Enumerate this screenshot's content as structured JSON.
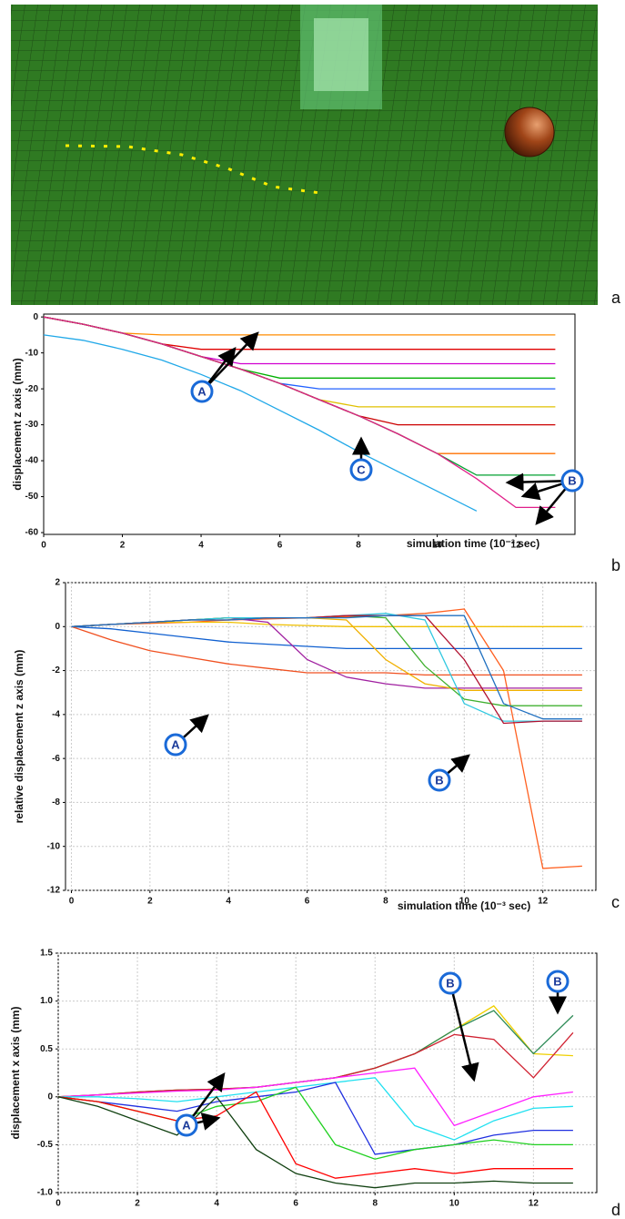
{
  "figure_labels": [
    "a",
    "b",
    "c",
    "d"
  ],
  "chart_data": [
    {
      "type": "line",
      "xlabel": "simulation time (10⁻³ sec)",
      "ylabel": "displacement z axis (mm)",
      "x": [
        0,
        1,
        2,
        3,
        4,
        5,
        6,
        7,
        8,
        9,
        10,
        11,
        12,
        13
      ],
      "xlim": [
        0,
        13.5
      ],
      "xticks": [
        0,
        2,
        4,
        6,
        8,
        10,
        12
      ],
      "ylim": [
        -60.5,
        0.8
      ],
      "yticks": [
        0,
        -10,
        -20,
        -30,
        -40,
        -50,
        -60
      ],
      "grid": false,
      "annotations": [
        "A",
        "B",
        "C"
      ],
      "series": [
        {
          "color": "#ff8c00",
          "values": [
            0,
            -2,
            -4.5,
            -5,
            -5,
            -5,
            -5,
            -5,
            -5,
            -5,
            -5,
            -5,
            -5,
            -5
          ]
        },
        {
          "color": "#e00000",
          "values": [
            0,
            -2,
            -4.5,
            -7.5,
            -9,
            -9,
            -9,
            -9,
            -9,
            -9,
            -9,
            -9,
            -9,
            -9
          ]
        },
        {
          "color": "#d000d0",
          "values": [
            0,
            -2,
            -4.5,
            -7.5,
            -11,
            -13,
            -13,
            -13,
            -13,
            -13,
            -13,
            -13,
            -13,
            -13
          ]
        },
        {
          "color": "#00b000",
          "values": [
            0,
            -2,
            -4.5,
            -7.5,
            -11,
            -14.5,
            -17,
            -17,
            -17,
            -17,
            -17,
            -17,
            -17,
            -17
          ]
        },
        {
          "color": "#2060ff",
          "values": [
            0,
            -2,
            -4.5,
            -7.5,
            -11,
            -14.5,
            -18.5,
            -20,
            -20,
            -20,
            -20,
            -20,
            -20,
            -20
          ]
        },
        {
          "color": "#e0c000",
          "values": [
            0,
            -2,
            -4.5,
            -7.5,
            -11,
            -14.5,
            -18.5,
            -23,
            -25,
            -25,
            -25,
            -25,
            -25,
            -25
          ]
        },
        {
          "color": "#cc0000",
          "values": [
            0,
            -2,
            -4.5,
            -7.5,
            -11,
            -14.5,
            -18.5,
            -23,
            -27.5,
            -30,
            -30,
            -30,
            -30,
            -30
          ]
        },
        {
          "color": "#ff7000",
          "values": [
            0,
            -2,
            -4.5,
            -7.5,
            -11,
            -14.5,
            -18.5,
            -23,
            -27.5,
            -32.5,
            -38,
            -38,
            -38,
            -38
          ]
        },
        {
          "color": "#00a030",
          "values": [
            0,
            -2,
            -4.5,
            -7.5,
            -11,
            -14.5,
            -18.5,
            -23,
            -27.5,
            -32.5,
            -38,
            -44,
            -44,
            -44
          ]
        },
        {
          "color": "#e0208a",
          "values": [
            0,
            -2,
            -4.5,
            -7.5,
            -11,
            -14.5,
            -18.5,
            -23,
            -27.5,
            -32.5,
            -38,
            -45,
            -53,
            -53
          ]
        },
        {
          "color": "#20a8e8",
          "values": [
            -5,
            -6.5,
            -9,
            -12,
            -16,
            -20.5,
            -26,
            -31.5,
            -37.5,
            -43,
            -48.5,
            -54,
            null,
            null
          ]
        }
      ]
    },
    {
      "type": "line",
      "xlabel": "simulation time (10⁻³ sec)",
      "ylabel": "relative displacement z axis (mm)",
      "x": [
        0,
        1,
        2,
        3,
        4,
        5,
        6,
        7,
        8,
        9,
        10,
        11,
        12,
        13
      ],
      "xlim": [
        -0.15,
        13.35
      ],
      "xticks": [
        0,
        2,
        4,
        6,
        8,
        10,
        12
      ],
      "ylim": [
        -12,
        2
      ],
      "yticks": [
        2,
        0,
        -2,
        -4,
        -6,
        -8,
        -10,
        -12
      ],
      "grid": true,
      "annotations": [
        "A",
        "B"
      ],
      "series": [
        {
          "color": "#ff6020",
          "values": [
            0,
            0.1,
            0.15,
            0.2,
            0.3,
            0.35,
            0.4,
            0.45,
            0.5,
            0.6,
            0.8,
            -2,
            -11,
            -10.9
          ]
        },
        {
          "color": "#f0c000",
          "values": [
            0,
            0.1,
            0.2,
            0.2,
            0.2,
            0.1,
            0.05,
            0,
            0,
            0,
            0,
            0,
            0,
            0
          ]
        },
        {
          "color": "#1060d0",
          "values": [
            0,
            -0.1,
            -0.3,
            -0.5,
            -0.7,
            -0.8,
            -0.9,
            -1,
            -1,
            -1,
            -1,
            -1,
            -1,
            -1
          ]
        },
        {
          "color": "#f05020",
          "values": [
            0,
            -0.6,
            -1.1,
            -1.4,
            -1.7,
            -1.9,
            -2.1,
            -2.1,
            -2.1,
            -2.2,
            -2.2,
            -2.2,
            -2.2,
            -2.2
          ]
        },
        {
          "color": "#a020a0",
          "values": [
            0,
            0.1,
            0.2,
            0.3,
            0.4,
            0.2,
            -1.5,
            -2.3,
            -2.6,
            -2.8,
            -2.8,
            -2.8,
            -2.8,
            -2.8
          ]
        },
        {
          "color": "#f0b000",
          "values": [
            0,
            0.1,
            0.2,
            0.3,
            0.4,
            0.4,
            0.4,
            0.3,
            -1.5,
            -2.6,
            -2.9,
            -2.9,
            -2.9,
            -2.9
          ]
        },
        {
          "color": "#40b030",
          "values": [
            0,
            0.1,
            0.2,
            0.3,
            0.4,
            0.4,
            0.4,
            0.5,
            0.4,
            -1.8,
            -3.3,
            -3.6,
            -3.6,
            -3.6
          ]
        },
        {
          "color": "#30c8e0",
          "values": [
            0,
            0.1,
            0.2,
            0.3,
            0.4,
            0.4,
            0.4,
            0.5,
            0.6,
            0.3,
            -3.5,
            -4.3,
            -4.3,
            -4.3
          ]
        },
        {
          "color": "#b01030",
          "values": [
            0,
            0.1,
            0.2,
            0.3,
            0.3,
            0.4,
            0.4,
            0.5,
            0.5,
            0.5,
            -1.5,
            -4.4,
            -4.3,
            -4.3
          ]
        },
        {
          "color": "#2070c0",
          "values": [
            0,
            0.1,
            0.2,
            0.3,
            0.3,
            0.4,
            0.4,
            0.4,
            0.5,
            0.5,
            0.5,
            -3.5,
            -4.2,
            -4.2
          ]
        }
      ]
    },
    {
      "type": "line",
      "ylabel": "displacement x axis (mm)",
      "x": [
        0,
        1,
        2,
        3,
        4,
        5,
        6,
        7,
        8,
        9,
        10,
        11,
        12,
        13
      ],
      "xlim": [
        0,
        13.6
      ],
      "xticks": [
        0,
        2,
        4,
        6,
        8,
        10,
        12
      ],
      "ylim": [
        -1,
        1.5
      ],
      "yticks": [
        1.5,
        {
          "value": 1,
          "label": "1.0"
        },
        0.5,
        0,
        -0.5,
        {
          "value": -1,
          "label": "-1.0"
        }
      ],
      "grid": true,
      "annotations": [
        "B",
        "B",
        "A"
      ],
      "series": [
        {
          "color": "#f0d000",
          "values": [
            0,
            0.02,
            0.05,
            0.07,
            0.08,
            0.1,
            0.15,
            0.2,
            0.3,
            0.45,
            0.7,
            0.95,
            0.45,
            0.43
          ]
        },
        {
          "color": "#2e8b57",
          "values": [
            0,
            0.02,
            0.05,
            0.07,
            0.08,
            0.1,
            0.15,
            0.2,
            0.3,
            0.45,
            0.7,
            0.9,
            0.45,
            0.85
          ]
        },
        {
          "color": "#d02030",
          "values": [
            0,
            0.02,
            0.05,
            0.07,
            0.08,
            0.1,
            0.15,
            0.2,
            0.3,
            0.45,
            0.65,
            0.6,
            0.2,
            0.67
          ]
        },
        {
          "color": "#ff20ff",
          "values": [
            0,
            0.02,
            0.04,
            0.06,
            0.07,
            0.1,
            0.15,
            0.2,
            0.25,
            0.3,
            -0.3,
            -0.15,
            0,
            0.05
          ]
        },
        {
          "color": "#20e0f0",
          "values": [
            0,
            0,
            -0.02,
            -0.05,
            0,
            0.05,
            0.1,
            0.15,
            0.2,
            -0.3,
            -0.45,
            -0.25,
            -0.12,
            -0.1
          ]
        },
        {
          "color": "#2030e0",
          "values": [
            0,
            -0.05,
            -0.1,
            -0.15,
            -0.05,
            0,
            0.05,
            0.15,
            -0.6,
            -0.55,
            -0.5,
            -0.4,
            -0.35,
            -0.35
          ]
        },
        {
          "color": "#20d020",
          "values": [
            0,
            -0.05,
            -0.15,
            -0.25,
            -0.1,
            -0.05,
            0.1,
            -0.5,
            -0.65,
            -0.55,
            -0.5,
            -0.45,
            -0.5,
            -0.5
          ]
        },
        {
          "color": "#ff0000",
          "values": [
            0,
            -0.05,
            -0.15,
            -0.25,
            -0.2,
            0.05,
            -0.7,
            -0.85,
            -0.8,
            -0.75,
            -0.8,
            -0.75,
            -0.75,
            -0.75
          ]
        },
        {
          "color": "#104010",
          "values": [
            0,
            -0.1,
            -0.25,
            -0.4,
            0,
            -0.55,
            -0.8,
            -0.9,
            -0.95,
            -0.9,
            -0.9,
            -0.88,
            -0.9,
            -0.9
          ]
        }
      ]
    }
  ]
}
